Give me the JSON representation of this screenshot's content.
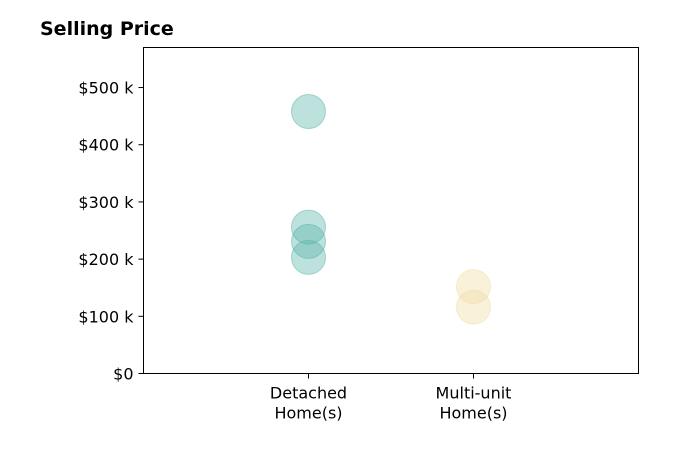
{
  "chart_data": {
    "type": "scatter",
    "title": "Selling Price",
    "xlabel": "",
    "ylabel": "",
    "categories": [
      "Detached\nHome(s)",
      "Multi-unit\nHome(s)"
    ],
    "x_range": [
      0,
      3
    ],
    "ylim": [
      0,
      570000
    ],
    "yticks": [
      {
        "value": 0,
        "label": "$0"
      },
      {
        "value": 100000,
        "label": "$100 k"
      },
      {
        "value": 200000,
        "label": "$200 k"
      },
      {
        "value": 300000,
        "label": "$300 k"
      },
      {
        "value": 400000,
        "label": "$400 k"
      },
      {
        "value": 500000,
        "label": "$500 k"
      }
    ],
    "grid": false,
    "legend": "none",
    "series": [
      {
        "category_index": 0,
        "color": "#5ab4a8",
        "values": [
          458000,
          256000,
          231000,
          203000
        ]
      },
      {
        "category_index": 1,
        "color": "#f2dca4",
        "values": [
          152000,
          116000
        ]
      }
    ]
  }
}
